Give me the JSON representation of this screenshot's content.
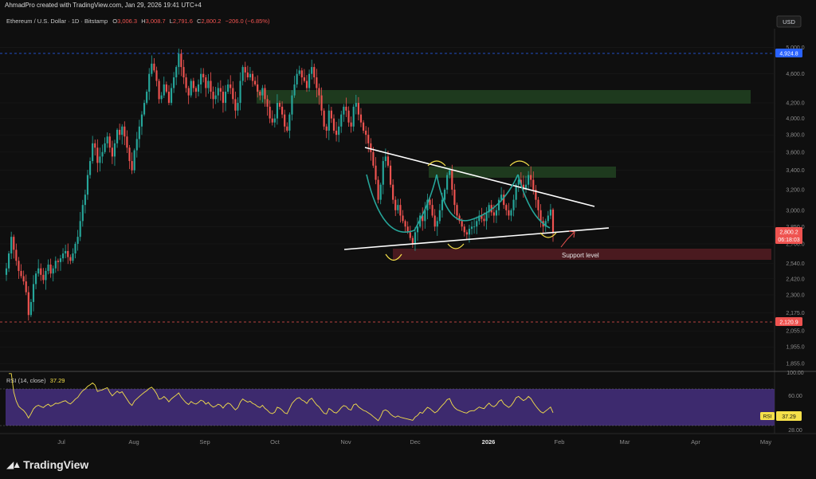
{
  "header": {
    "credit": "AhmadPro created with TradingView.com, Jan 29, 2026 19:41 UTC+4"
  },
  "legend": {
    "symbol": "Ethereum / U.S. Dollar · 1D · Bitstamp",
    "o_label": "O",
    "o_value": "3,006.3",
    "h_label": "H",
    "h_value": "3,008.7",
    "l_label": "L",
    "l_value": "2,791.6",
    "c_label": "C",
    "c_value": "2,800.2",
    "change": "−206.0 (−6.85%)"
  },
  "currency_button": "USD",
  "colors": {
    "up": "#26a69a",
    "down": "#ef5350",
    "zone_green": "#1e3a1e",
    "zone_red": "#4a1a1f",
    "rsi_band": "#3d2a6e",
    "rsi_line": "#f5e04a",
    "high_line": "#2962ff",
    "low_line": "#ef5350"
  },
  "chart_data": {
    "type": "candlestick",
    "price_axis": {
      "scale": "log",
      "ticks": [
        "5,000.0",
        "4,600.0",
        "4,200.0",
        "4,000.0",
        "3,800.0",
        "3,600.0",
        "3,400.0",
        "3,200.0",
        "3,000.0",
        "2,850.0",
        "2,700.0",
        "2,540.0",
        "2,420.0",
        "2,300.0",
        "2,175.0",
        "2,055.0",
        "1,955.0",
        "1,855.0"
      ],
      "ylim": [
        1810,
        5300
      ]
    },
    "time_axis": {
      "labels": [
        "Jul",
        "Aug",
        "Sep",
        "Oct",
        "Nov",
        "Dec",
        "2026",
        "Feb",
        "Mar",
        "Apr",
        "May"
      ]
    },
    "markers": {
      "period_high": "4,924.8",
      "period_low": "2,120.9",
      "last_price": "2,800.2",
      "countdown": "06:18:03"
    },
    "closes": [
      2500,
      2620,
      2760,
      2650,
      2560,
      2480,
      2440,
      2400,
      2320,
      2160,
      2250,
      2380,
      2460,
      2500,
      2450,
      2410,
      2480,
      2530,
      2460,
      2500,
      2560,
      2550,
      2580,
      2620,
      2640,
      2590,
      2560,
      2620,
      2700,
      2760,
      2900,
      3050,
      3150,
      3350,
      3500,
      3700,
      3650,
      3480,
      3550,
      3600,
      3700,
      3780,
      3650,
      3550,
      3700,
      3860,
      3800,
      3900,
      3780,
      3650,
      3500,
      3400,
      3620,
      3750,
      3900,
      4050,
      4200,
      4350,
      4600,
      4750,
      4650,
      4500,
      4250,
      4300,
      4450,
      4350,
      4200,
      4400,
      4550,
      4700,
      4900,
      4700,
      4550,
      4400,
      4300,
      4500,
      4400,
      4350,
      4450,
      4600,
      4550,
      4400,
      4500,
      4350,
      4250,
      4300,
      4400,
      4350,
      4200,
      4350,
      4450,
      4400,
      4250,
      4100,
      4200,
      4500,
      4700,
      4620,
      4550,
      4600,
      4500,
      4450,
      4350,
      4300,
      4400,
      4250,
      4150,
      4000,
      3950,
      4000,
      4200,
      4150,
      4050,
      3900,
      3850,
      4050,
      4300,
      4450,
      4600,
      4650,
      4550,
      4500,
      4400,
      4600,
      4700,
      4550,
      4400,
      4300,
      4100,
      3900,
      3850,
      4100,
      4000,
      3850,
      3800,
      3900,
      4050,
      4150,
      4100,
      3950,
      3900,
      4150,
      4200,
      4050,
      3950,
      3850,
      3800,
      3700,
      3600,
      3450,
      3300,
      3100,
      3250,
      3500,
      3550,
      3450,
      3250,
      3100,
      3000,
      3050,
      2950,
      2900,
      2850,
      2800,
      2750,
      2700,
      2800,
      2850,
      2950,
      2900,
      3000,
      3100,
      3050,
      2950,
      2850,
      2900,
      3000,
      3100,
      3200,
      3350,
      3400,
      3200,
      3050,
      2950,
      2900,
      2850,
      2800,
      2780,
      2830,
      2850,
      2850,
      2900,
      2950,
      2920,
      2900,
      2980,
      3050,
      2980,
      2950,
      3000,
      3100,
      3150,
      3050,
      3000,
      2950,
      3000,
      3100,
      3250,
      3300,
      3250,
      3200,
      3250,
      3350,
      3300,
      3200,
      3100,
      3000,
      2900,
      2850,
      2900,
      2950,
      3006,
      2800
    ],
    "annotations": {
      "support_label": "Support level"
    }
  },
  "rsi": {
    "label": "RSI (14, close)",
    "value": "37.29",
    "tag": "RSI",
    "ticks": [
      "100.00",
      "60.00",
      "28.00"
    ]
  },
  "footer": {
    "brand": "TradingView"
  }
}
